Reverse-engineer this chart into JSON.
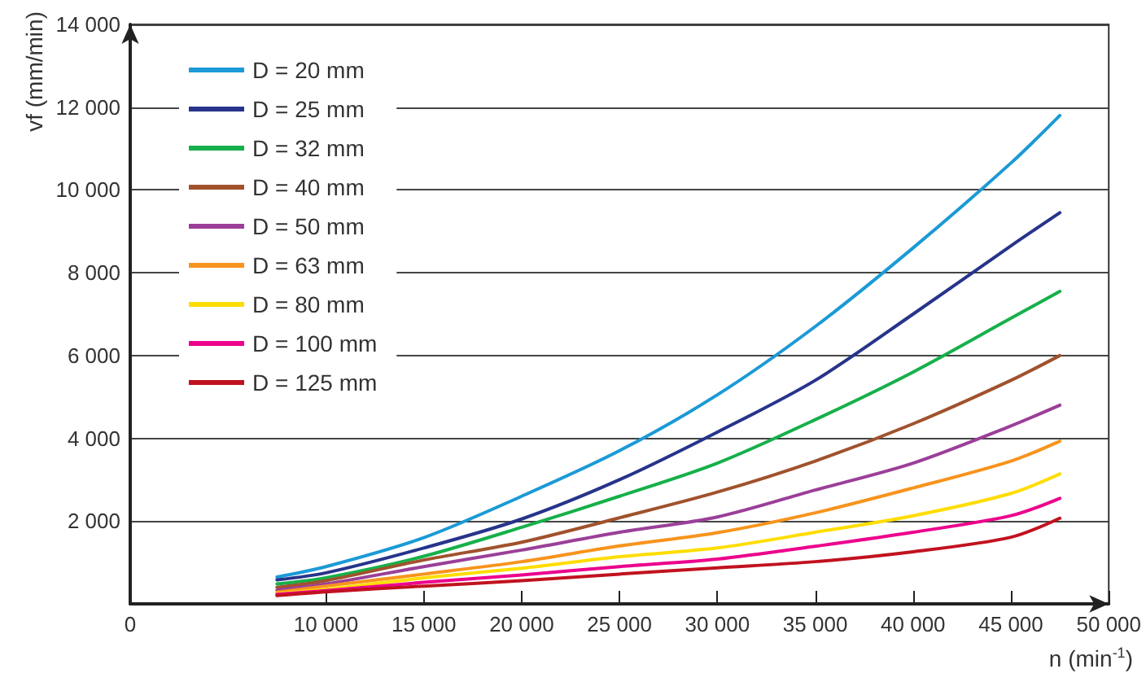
{
  "chart_data": {
    "type": "line",
    "xlabel": "n (min$^{-1}$)",
    "ylabel": "vf (mm/min)",
    "x": [
      7500,
      10000,
      15000,
      20000,
      25000,
      30000,
      35000,
      40000,
      45000,
      47500
    ],
    "xlim": [
      0,
      50000
    ],
    "xticks": [
      0,
      {
        "value": 10000,
        "label": "10 000"
      },
      {
        "value": 15000,
        "label": "15 000"
      },
      {
        "value": 20000,
        "label": "20 000"
      },
      {
        "value": 25000,
        "label": "25 000"
      },
      {
        "value": 30000,
        "label": "30 000"
      },
      {
        "value": 35000,
        "label": "35 000"
      },
      {
        "value": 40000,
        "label": "40 000"
      },
      {
        "value": 45000,
        "label": "45 000"
      },
      {
        "value": 50000,
        "label": "50 000"
      }
    ],
    "ylim": [
      0,
      14000
    ],
    "yticks": [
      {
        "value": 2000,
        "label": "2 000"
      },
      {
        "value": 4000,
        "label": "4 000"
      },
      {
        "value": 6000,
        "label": "6 000"
      },
      {
        "value": 8000,
        "label": "8 000"
      },
      {
        "value": 10000,
        "label": "10 000"
      },
      {
        "value": 12000,
        "label": "12 000"
      },
      {
        "value": 14000,
        "label": "14 000"
      }
    ],
    "grid": "y",
    "legend": "top left",
    "marker": "none",
    "line_style": "solid",
    "series": [
      {
        "name": "D = 20 mm",
        "color": "#1b9ad6",
        "values": [
          650,
          900,
          1600,
          2600,
          3700,
          5050,
          6700,
          8600,
          10650,
          11800
        ]
      },
      {
        "name": "D = 25 mm",
        "color": "#27348b",
        "values": [
          580,
          750,
          1350,
          2050,
          3000,
          4150,
          5400,
          7000,
          8650,
          9450
        ]
      },
      {
        "name": "D = 32 mm",
        "color": "#16b04a",
        "values": [
          480,
          630,
          1150,
          1850,
          2600,
          3400,
          4450,
          5600,
          6900,
          7550
        ]
      },
      {
        "name": "D = 40 mm",
        "color": "#a0522d",
        "values": [
          400,
          560,
          1060,
          1490,
          2080,
          2700,
          3450,
          4350,
          5400,
          6000
        ]
      },
      {
        "name": "D = 50 mm",
        "color": "#9b3f98",
        "values": [
          330,
          480,
          900,
          1300,
          1730,
          2100,
          2750,
          3400,
          4300,
          4800
        ]
      },
      {
        "name": "D = 63 mm",
        "color": "#f7941d",
        "values": [
          280,
          430,
          720,
          1020,
          1400,
          1720,
          2200,
          2800,
          3450,
          3930
        ]
      },
      {
        "name": "D = 80 mm",
        "color": "#ffdd00",
        "values": [
          250,
          350,
          630,
          860,
          1140,
          1350,
          1730,
          2130,
          2670,
          3140
        ]
      },
      {
        "name": "D = 100 mm",
        "color": "#ec008c",
        "values": [
          230,
          320,
          520,
          700,
          900,
          1080,
          1390,
          1730,
          2130,
          2550
        ]
      },
      {
        "name": "D = 125 mm",
        "color": "#c1121f",
        "values": [
          200,
          290,
          430,
          560,
          720,
          870,
          1020,
          1260,
          1610,
          2070
        ]
      }
    ]
  }
}
